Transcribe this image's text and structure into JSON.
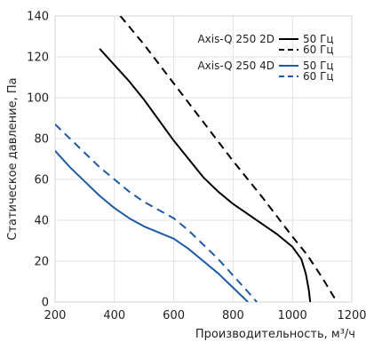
{
  "chart_data": {
    "type": "line",
    "xlabel": "Производительность, м³/ч",
    "ylabel": "Статическое давление, Па",
    "xlim": [
      200,
      1200
    ],
    "ylim": [
      0,
      140
    ],
    "xticks": [
      200,
      400,
      600,
      800,
      1000,
      1200
    ],
    "yticks": [
      0,
      20,
      40,
      60,
      80,
      100,
      120,
      140
    ],
    "grid": true,
    "legend_position": "top-right",
    "legend": {
      "groups": [
        {
          "model": "Axis-Q 250 2D",
          "entries": [
            {
              "label": "50 Гц",
              "series_index": 0
            },
            {
              "label": "60 Гц",
              "series_index": 1
            }
          ]
        },
        {
          "model": "Axis-Q 250 4D",
          "entries": [
            {
              "label": "50 Гц",
              "series_index": 2
            },
            {
              "label": "60 Гц",
              "series_index": 3
            }
          ]
        }
      ]
    },
    "series": [
      {
        "color": "#000000",
        "dash": "solid",
        "x": [
          350,
          400,
          450,
          500,
          550,
          600,
          650,
          700,
          750,
          800,
          850,
          900,
          950,
          1000,
          1030,
          1045,
          1055,
          1060
        ],
        "y": [
          124,
          116,
          108,
          99,
          89,
          79,
          70,
          61,
          54,
          48,
          43,
          38,
          33,
          27,
          21,
          14,
          6,
          0
        ]
      },
      {
        "color": "#000000",
        "dash": "dashed",
        "x": [
          420,
          500,
          600,
          700,
          800,
          900,
          1000,
          1050,
          1100,
          1150
        ],
        "y": [
          140,
          126,
          107,
          88,
          69,
          51,
          32,
          23,
          12,
          0
        ]
      },
      {
        "color": "#1f5aa6",
        "dash": "solid",
        "x": [
          200,
          250,
          300,
          350,
          400,
          450,
          500,
          550,
          600,
          650,
          700,
          750,
          800,
          850
        ],
        "y": [
          74,
          66,
          59,
          52,
          46,
          41,
          37,
          34,
          31,
          26,
          20,
          14,
          7,
          0
        ]
      },
      {
        "color": "#1f5aa6",
        "dash": "dashed",
        "x": [
          200,
          250,
          300,
          350,
          400,
          450,
          500,
          550,
          600,
          650,
          700,
          750,
          800,
          850,
          880
        ],
        "y": [
          87,
          80,
          73,
          66,
          60,
          54,
          49,
          45,
          41,
          35,
          28,
          21,
          13,
          5,
          0
        ]
      }
    ]
  }
}
